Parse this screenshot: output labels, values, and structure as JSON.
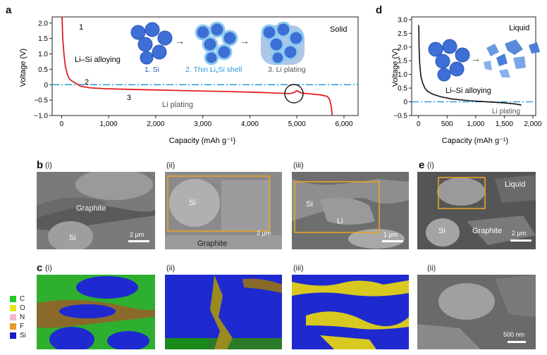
{
  "panel_letters": {
    "a": "a",
    "b": "b",
    "c": "c",
    "d": "d",
    "e": "e"
  },
  "sub_labels": {
    "b_i": "(i)",
    "b_ii": "(ii)",
    "b_iii": "(iii)",
    "c_i": "(i)",
    "c_ii": "(ii)",
    "c_iii": "(iii)",
    "e_i": "(i)",
    "e_ii": "(ii)"
  },
  "panel_a": {
    "condition": "Solid",
    "stage_labels": [
      "1",
      "2",
      "3"
    ],
    "region_labels": {
      "alloying": "Li–Si alloying",
      "plating": "Li plating"
    },
    "schematic_labels": [
      "1. Si",
      "2. Thin Li",
      "x",
      "Si shell",
      "3. Li plating"
    ]
  },
  "panel_d": {
    "condition": "Liquid",
    "region_labels": {
      "alloying": "Li–Si alloying",
      "plating": "Li plating"
    }
  },
  "panel_b": {
    "i": {
      "labels": [
        "Graphite",
        "Si"
      ],
      "scale": "2 µm"
    },
    "ii": {
      "labels": [
        "Si",
        "Graphite"
      ],
      "scale": "2 µm"
    },
    "iii": {
      "labels": [
        "Si",
        "Li"
      ],
      "scale": "1 µm"
    }
  },
  "panel_e": {
    "i": {
      "labels": [
        "Liquid",
        "Si",
        "Graphite"
      ],
      "scale": "2 µm"
    },
    "ii": {
      "scale": "500 nm"
    }
  },
  "legend": {
    "items": [
      {
        "label": "C",
        "color": "#22cc22"
      },
      {
        "label": "O",
        "color": "#e6e619"
      },
      {
        "label": "N",
        "color": "#f4b8cc"
      },
      {
        "label": "F",
        "color": "#e89a2a"
      },
      {
        "label": "Si",
        "color": "#1a1acc"
      }
    ]
  },
  "chart_data": [
    {
      "type": "line",
      "xlabel": "Capacity (mAh g⁻¹)",
      "ylabel": "Voltage (V)",
      "xlim": [
        -200,
        6300
      ],
      "ylim": [
        -1.0,
        2.2
      ],
      "xticks": [
        0,
        1000,
        2000,
        3000,
        4000,
        5000,
        6000
      ],
      "xtick_labels": [
        "0",
        "1,000",
        "2,000",
        "3,000",
        "4,000",
        "5,000",
        "6,000"
      ],
      "yticks": [
        -1.0,
        -0.5,
        0,
        0.5,
        1.0,
        1.5,
        2.0
      ],
      "ytick_labels": [
        "−1.0",
        "−0.5",
        "0",
        "0.5",
        "1.0",
        "1.5",
        "2.0"
      ],
      "reference_line": 0,
      "series": [
        {
          "color": "#e02020",
          "x": [
            10,
            25,
            50,
            80,
            120,
            160,
            220,
            300,
            400,
            600,
            900,
            1400,
            2000,
            2800,
            3500,
            4200,
            4700,
            4850,
            4950,
            5000,
            5030,
            5100,
            5300,
            5500,
            5650,
            5700,
            5730,
            5750
          ],
          "y": [
            2.2,
            1.5,
            1.0,
            0.6,
            0.35,
            0.2,
            0.12,
            0.05,
            -0.05,
            -0.1,
            -0.13,
            -0.15,
            -0.17,
            -0.2,
            -0.22,
            -0.25,
            -0.28,
            -0.29,
            -0.25,
            -0.19,
            -0.22,
            -0.27,
            -0.3,
            -0.33,
            -0.38,
            -0.5,
            -0.7,
            -1.0
          ]
        }
      ]
    },
    {
      "type": "line",
      "xlabel": "Capacity (mAh g⁻¹)",
      "ylabel": "Voltage (V)",
      "xlim": [
        -120,
        2050
      ],
      "ylim": [
        -0.5,
        3.1
      ],
      "xticks": [
        0,
        500,
        1000,
        1500,
        2000
      ],
      "xtick_labels": [
        "0",
        "500",
        "1,000",
        "1,500",
        "2,000"
      ],
      "yticks": [
        -0.5,
        0,
        0.5,
        1.0,
        1.5,
        2.0,
        2.5,
        3.0
      ],
      "ytick_labels": [
        "−0.5",
        "0",
        "0.5",
        "1.0",
        "1.5",
        "2.0",
        "2.5",
        "3.0"
      ],
      "reference_line": 0,
      "series": [
        {
          "color": "#111111",
          "x": [
            5,
            10,
            20,
            40,
            70,
            110,
            160,
            250,
            400,
            600,
            900,
            1200,
            1500,
            1700,
            1800
          ],
          "y": [
            2.8,
            2.0,
            1.4,
            0.95,
            0.7,
            0.5,
            0.38,
            0.28,
            0.18,
            0.1,
            0.04,
            0.0,
            -0.04,
            -0.08,
            -0.12
          ]
        }
      ]
    }
  ]
}
